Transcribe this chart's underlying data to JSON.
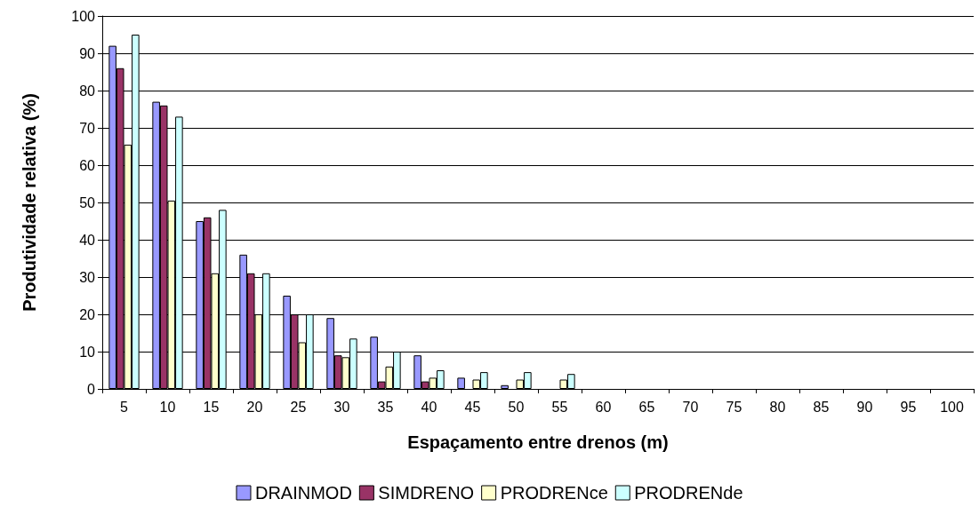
{
  "chart_data": {
    "type": "bar",
    "xlabel": "Espaçamento entre drenos (m)",
    "ylabel": "Produtividade relativa (%)",
    "categories": [
      "5",
      "10",
      "15",
      "20",
      "25",
      "30",
      "35",
      "40",
      "45",
      "50",
      "55",
      "60",
      "65",
      "70",
      "75",
      "80",
      "85",
      "90",
      "95",
      "100"
    ],
    "series": [
      {
        "name": "DRAINMOD",
        "color": "#9999ff",
        "values": [
          92,
          77,
          45,
          36,
          25,
          19,
          14,
          9,
          3,
          1,
          0,
          0,
          0,
          0,
          0,
          0,
          0,
          0,
          0,
          0
        ]
      },
      {
        "name": "SIMDRENO",
        "color": "#993366",
        "values": [
          86,
          76,
          46,
          31,
          20,
          9,
          2,
          2,
          0,
          0,
          0,
          0,
          0,
          0,
          0,
          0,
          0,
          0,
          0,
          0
        ]
      },
      {
        "name": "PRODRENce",
        "color": "#ffffcc",
        "values": [
          65.5,
          50.5,
          31,
          20,
          12.5,
          8.5,
          6,
          3,
          2.5,
          2.5,
          2.5,
          0,
          0,
          0,
          0,
          0,
          0,
          0,
          0,
          0
        ]
      },
      {
        "name": "PRODRENde",
        "color": "#ccffff",
        "values": [
          95,
          73,
          48,
          31,
          20,
          13.5,
          10,
          5,
          4.5,
          4.5,
          4,
          0,
          0,
          0,
          0,
          0,
          0,
          0,
          0,
          0
        ]
      }
    ],
    "ylim": [
      0,
      100
    ],
    "yticks": [
      0,
      10,
      20,
      30,
      40,
      50,
      60,
      70,
      80,
      90,
      100
    ],
    "grid": "y",
    "legend": "bottom"
  }
}
